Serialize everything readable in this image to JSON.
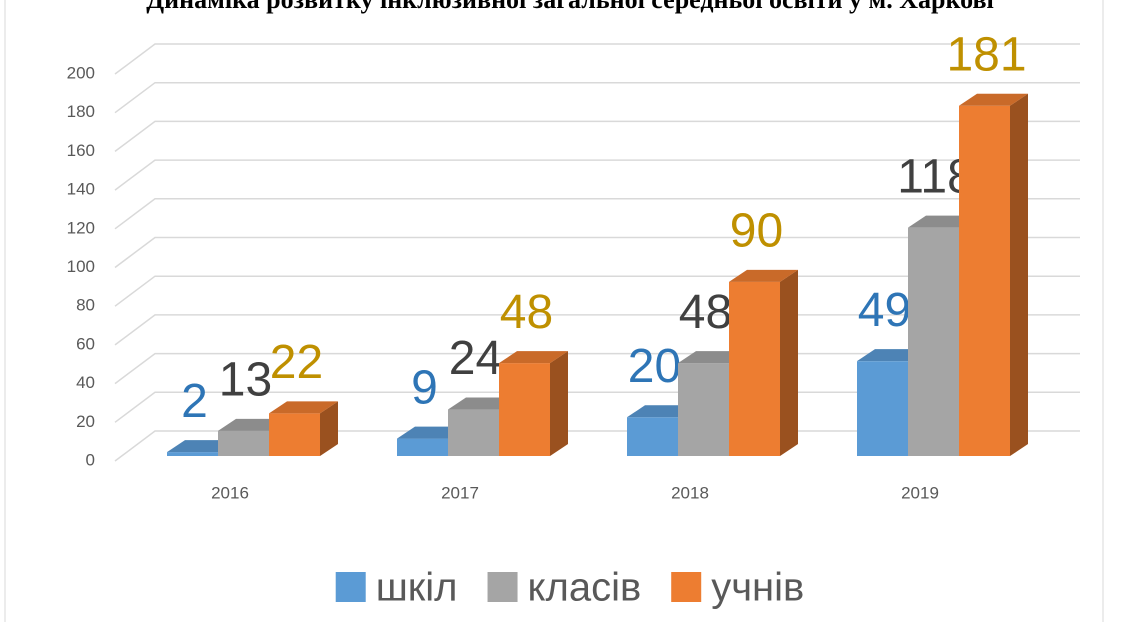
{
  "chart_data": {
    "type": "bar3d",
    "title": "Динаміка розвитку інклюзивної загальної середньої освіти у м. Харкові",
    "categories": [
      "2016",
      "2017",
      "2018",
      "2019"
    ],
    "series": [
      {
        "name": "шкіл",
        "color": "#5b9bd5",
        "label_color": "#2e75b6",
        "values": [
          2,
          9,
          20,
          49
        ]
      },
      {
        "name": "класів",
        "color": "#a5a5a5",
        "label_color": "#404040",
        "values": [
          13,
          24,
          48,
          118
        ]
      },
      {
        "name": "учнів",
        "color": "#ed7d31",
        "label_color": "#bf9000",
        "values": [
          22,
          48,
          90,
          181
        ]
      }
    ],
    "ylim": [
      0,
      200
    ],
    "yticks": [
      0,
      20,
      40,
      60,
      80,
      100,
      120,
      140,
      160,
      180,
      200
    ],
    "grid": true,
    "legend": "bottom"
  }
}
